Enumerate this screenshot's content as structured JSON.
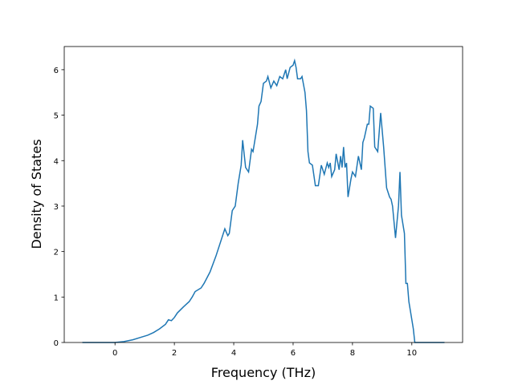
{
  "chart_data": {
    "type": "line",
    "xlabel": "Frequency (THz)",
    "ylabel": "Density of States",
    "x": [
      -1.1,
      0,
      0.3,
      0.6,
      0.9,
      1.1,
      1.3,
      1.5,
      1.7,
      1.8,
      1.9,
      2.0,
      2.1,
      2.3,
      2.5,
      2.6,
      2.7,
      2.9,
      3.0,
      3.2,
      3.4,
      3.6,
      3.7,
      3.8,
      3.85,
      3.95,
      4.05,
      4.15,
      4.25,
      4.3,
      4.4,
      4.5,
      4.6,
      4.65,
      4.8,
      4.85,
      4.92,
      5.0,
      5.1,
      5.15,
      5.25,
      5.35,
      5.45,
      5.55,
      5.65,
      5.75,
      5.8,
      5.9,
      6.0,
      6.05,
      6.1,
      6.15,
      6.25,
      6.3,
      6.4,
      6.45,
      6.5,
      6.55,
      6.65,
      6.75,
      6.85,
      6.95,
      7.05,
      7.15,
      7.2,
      7.25,
      7.3,
      7.4,
      7.45,
      7.55,
      7.6,
      7.65,
      7.7,
      7.75,
      7.8,
      7.85,
      7.95,
      8.0,
      8.1,
      8.2,
      8.3,
      8.35,
      8.4,
      8.5,
      8.55,
      8.6,
      8.7,
      8.75,
      8.85,
      8.95,
      9.05,
      9.15,
      9.25,
      9.3,
      9.35,
      9.45,
      9.55,
      9.6,
      9.65,
      9.75,
      9.8,
      9.85,
      9.9,
      10.0,
      10.05,
      10.1,
      11.1
    ],
    "series": [
      {
        "color": "#1f77b4",
        "values": [
          0,
          0,
          0.02,
          0.06,
          0.12,
          0.16,
          0.22,
          0.3,
          0.4,
          0.5,
          0.48,
          0.55,
          0.65,
          0.78,
          0.9,
          1.0,
          1.12,
          1.2,
          1.3,
          1.55,
          1.9,
          2.3,
          2.5,
          2.35,
          2.4,
          2.9,
          3.0,
          3.5,
          3.9,
          4.45,
          3.85,
          3.75,
          4.25,
          4.2,
          4.8,
          5.2,
          5.3,
          5.7,
          5.75,
          5.85,
          5.6,
          5.75,
          5.65,
          5.85,
          5.8,
          6.0,
          5.8,
          6.05,
          6.1,
          6.2,
          6.05,
          5.8,
          5.8,
          5.85,
          5.5,
          5.1,
          4.2,
          3.95,
          3.9,
          3.45,
          3.45,
          3.9,
          3.7,
          3.95,
          3.85,
          3.95,
          3.65,
          3.8,
          4.15,
          3.8,
          4.1,
          3.85,
          4.3,
          3.85,
          3.95,
          3.2,
          3.6,
          3.75,
          3.65,
          4.1,
          3.8,
          4.4,
          4.5,
          4.8,
          4.8,
          5.2,
          5.15,
          4.3,
          4.2,
          5.05,
          4.3,
          3.4,
          3.2,
          3.15,
          3.0,
          2.3,
          3.0,
          3.75,
          2.8,
          2.4,
          1.3,
          1.3,
          0.9,
          0.5,
          0.3,
          0,
          0
        ]
      }
    ],
    "xlim": [
      -1.71,
      11.71
    ],
    "ylim": [
      0,
      6.51
    ],
    "xticks": [
      0,
      2,
      4,
      6,
      8,
      10
    ],
    "yticks": [
      0,
      1,
      2,
      3,
      4,
      5,
      6
    ]
  }
}
